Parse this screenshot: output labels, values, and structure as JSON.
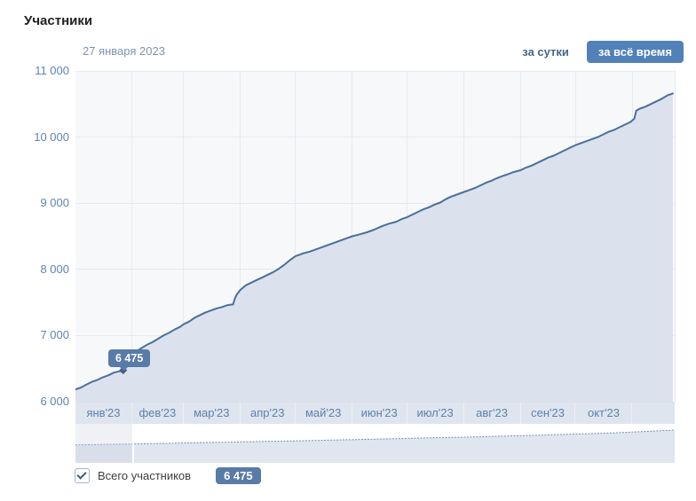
{
  "header": {
    "title": "Участники",
    "date_label": "27 января 2023",
    "range_buttons": [
      {
        "label": "за сутки",
        "active": false
      },
      {
        "label": "за всё время",
        "active": true
      }
    ]
  },
  "tooltip": {
    "date": "27 января 2023",
    "value": "6 475"
  },
  "legend": {
    "checkbox_checked": true,
    "label": "Всего участников",
    "value": "6 475"
  },
  "colors": {
    "accent_button": "#5181b8",
    "line": "#4a6f9b",
    "area_fill": "#dbe2ed",
    "tooltip_bg": "#587ba7",
    "axis_text": "#5e84b0",
    "plot_bg": "#f7f8fa",
    "axis_band_bg": "#dfe5ee",
    "gridline": "#e6e9ee"
  },
  "chart_data": {
    "type": "area",
    "title": "Участники",
    "xlabel": "",
    "ylabel": "",
    "x_axis": {
      "unit": "day of 2023",
      "tick_labels": [
        "янв'23",
        "фев'23",
        "мар'23",
        "апр'23",
        "май'23",
        "июн'23",
        "июл'23",
        "авг'23",
        "сен'23",
        "окт'23",
        ""
      ],
      "month_start_days": [
        0,
        31,
        59,
        90,
        120,
        151,
        181,
        212,
        243,
        273,
        304
      ],
      "total_days": 327
    },
    "y_axis": {
      "ticks": [
        6000,
        7000,
        8000,
        9000,
        10000,
        11000
      ],
      "tick_labels": [
        "6 000",
        "7 000",
        "8 000",
        "9 000",
        "10 000",
        "11 000"
      ],
      "range": [
        6000,
        11000
      ]
    },
    "grid": true,
    "legend_position": "bottom",
    "series": [
      {
        "name": "Всего участников",
        "points": [
          [
            0,
            6185
          ],
          [
            3,
            6215
          ],
          [
            6,
            6260
          ],
          [
            9,
            6300
          ],
          [
            12,
            6330
          ],
          [
            15,
            6370
          ],
          [
            18,
            6400
          ],
          [
            21,
            6440
          ],
          [
            24,
            6460
          ],
          [
            26,
            6475
          ],
          [
            28,
            6540
          ],
          [
            30,
            6680
          ],
          [
            31,
            6730
          ],
          [
            33,
            6760
          ],
          [
            36,
            6810
          ],
          [
            39,
            6860
          ],
          [
            42,
            6900
          ],
          [
            45,
            6950
          ],
          [
            48,
            7000
          ],
          [
            51,
            7040
          ],
          [
            54,
            7090
          ],
          [
            57,
            7130
          ],
          [
            59,
            7170
          ],
          [
            62,
            7210
          ],
          [
            65,
            7270
          ],
          [
            68,
            7310
          ],
          [
            71,
            7350
          ],
          [
            74,
            7380
          ],
          [
            77,
            7410
          ],
          [
            80,
            7430
          ],
          [
            83,
            7460
          ],
          [
            86,
            7470
          ],
          [
            87,
            7560
          ],
          [
            88,
            7620
          ],
          [
            90,
            7690
          ],
          [
            93,
            7760
          ],
          [
            96,
            7800
          ],
          [
            99,
            7840
          ],
          [
            102,
            7880
          ],
          [
            105,
            7920
          ],
          [
            108,
            7960
          ],
          [
            111,
            8010
          ],
          [
            114,
            8070
          ],
          [
            117,
            8140
          ],
          [
            120,
            8200
          ],
          [
            124,
            8240
          ],
          [
            128,
            8270
          ],
          [
            132,
            8310
          ],
          [
            136,
            8350
          ],
          [
            140,
            8390
          ],
          [
            144,
            8430
          ],
          [
            148,
            8470
          ],
          [
            151,
            8500
          ],
          [
            155,
            8530
          ],
          [
            159,
            8560
          ],
          [
            163,
            8600
          ],
          [
            167,
            8650
          ],
          [
            171,
            8690
          ],
          [
            175,
            8720
          ],
          [
            178,
            8760
          ],
          [
            181,
            8790
          ],
          [
            184,
            8830
          ],
          [
            187,
            8870
          ],
          [
            190,
            8910
          ],
          [
            193,
            8940
          ],
          [
            196,
            8980
          ],
          [
            199,
            9010
          ],
          [
            202,
            9060
          ],
          [
            205,
            9100
          ],
          [
            208,
            9130
          ],
          [
            212,
            9170
          ],
          [
            215,
            9200
          ],
          [
            218,
            9230
          ],
          [
            221,
            9270
          ],
          [
            224,
            9310
          ],
          [
            227,
            9340
          ],
          [
            230,
            9380
          ],
          [
            233,
            9410
          ],
          [
            236,
            9440
          ],
          [
            239,
            9470
          ],
          [
            243,
            9500
          ],
          [
            246,
            9540
          ],
          [
            249,
            9570
          ],
          [
            252,
            9610
          ],
          [
            255,
            9650
          ],
          [
            258,
            9690
          ],
          [
            261,
            9720
          ],
          [
            264,
            9760
          ],
          [
            267,
            9800
          ],
          [
            270,
            9840
          ],
          [
            273,
            9880
          ],
          [
            276,
            9910
          ],
          [
            279,
            9940
          ],
          [
            282,
            9970
          ],
          [
            285,
            10000
          ],
          [
            288,
            10040
          ],
          [
            291,
            10080
          ],
          [
            294,
            10110
          ],
          [
            297,
            10150
          ],
          [
            300,
            10190
          ],
          [
            303,
            10230
          ],
          [
            305,
            10280
          ],
          [
            306,
            10400
          ],
          [
            308,
            10430
          ],
          [
            311,
            10460
          ],
          [
            314,
            10500
          ],
          [
            317,
            10540
          ],
          [
            320,
            10580
          ],
          [
            323,
            10630
          ],
          [
            326,
            10660
          ]
        ]
      }
    ],
    "marked_point": {
      "date": "27 января 2023",
      "day": 26,
      "value": 6475,
      "label": "6 475"
    },
    "navigator": {
      "mask_end_fraction": 0.098,
      "points": [
        [
          0,
          0.54
        ],
        [
          0.05,
          0.525
        ],
        [
          0.098,
          0.515
        ],
        [
          0.15,
          0.5
        ],
        [
          0.2,
          0.485
        ],
        [
          0.25,
          0.47
        ],
        [
          0.3,
          0.455
        ],
        [
          0.35,
          0.44
        ],
        [
          0.4,
          0.425
        ],
        [
          0.45,
          0.41
        ],
        [
          0.5,
          0.39
        ],
        [
          0.55,
          0.375
        ],
        [
          0.6,
          0.355
        ],
        [
          0.65,
          0.34
        ],
        [
          0.7,
          0.32
        ],
        [
          0.75,
          0.3
        ],
        [
          0.8,
          0.28
        ],
        [
          0.85,
          0.255
        ],
        [
          0.9,
          0.23
        ],
        [
          0.95,
          0.195
        ],
        [
          1,
          0.16
        ]
      ]
    }
  }
}
